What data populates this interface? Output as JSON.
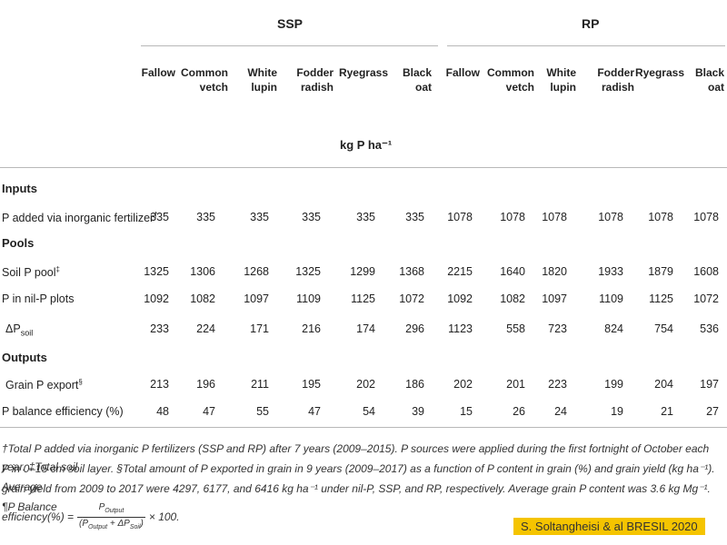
{
  "groups": {
    "ssp": "SSP",
    "rp": "RP"
  },
  "columns": [
    [
      "Fallow"
    ],
    [
      "Common",
      "vetch"
    ],
    [
      "White",
      "lupin"
    ],
    [
      "Fodder",
      "radish"
    ],
    [
      "Ryegrass"
    ],
    [
      "Black",
      "oat"
    ],
    [
      "Fallow"
    ],
    [
      "Common",
      "vetch"
    ],
    [
      "White",
      "lupin"
    ],
    [
      "Fodder",
      "radish"
    ],
    [
      "Ryegrass"
    ],
    [
      "Black",
      "oat"
    ]
  ],
  "unit": "kg P ha⁻¹",
  "sections": {
    "inputs": "Inputs",
    "pools": "Pools",
    "outputs": "Outputs"
  },
  "rows": {
    "p_added": {
      "label": "P added via inorganic fertilizer",
      "mark": "†",
      "values": [
        "335",
        "335",
        "335",
        "335",
        "335",
        "335",
        "1078",
        "1078",
        "1078",
        "1078",
        "1078",
        "1078"
      ]
    },
    "soil_p": {
      "label": "Soil P pool",
      "mark": "‡",
      "values": [
        "1325",
        "1306",
        "1268",
        "1325",
        "1299",
        "1368",
        "2215",
        "1640",
        "1820",
        "1933",
        "1879",
        "1608"
      ]
    },
    "nil_p": {
      "label": "P in nil-P plots",
      "values": [
        "1092",
        "1082",
        "1097",
        "1109",
        "1125",
        "1072",
        "1092",
        "1082",
        "1097",
        "1109",
        "1125",
        "1072"
      ]
    },
    "delta_p": {
      "label": "ΔP",
      "sub": "soil",
      "values": [
        "233",
        "224",
        "171",
        "216",
        "174",
        "296",
        "1123",
        "558",
        "723",
        "824",
        "754",
        "536"
      ]
    },
    "grain_p": {
      "label": "Grain P export",
      "mark": "§",
      "values": [
        "213",
        "196",
        "211",
        "195",
        "202",
        "186",
        "202",
        "201",
        "223",
        "199",
        "204",
        "197"
      ]
    },
    "efficiency": {
      "label": "P balance efficiency (%)",
      "values": [
        "48",
        "47",
        "55",
        "47",
        "54",
        "39",
        "15",
        "26",
        "24",
        "19",
        "21",
        "27"
      ]
    }
  },
  "footnote": {
    "line1": "†Total P added via inorganic P fertilizers (SSP and RP) after 7 years (2009–2015). P sources were applied during the first fortnight of October each year. ‡Total soil",
    "line2": "P in 0–15 cm soil layer. §Total amount of P exported in grain in 9 years (2009–2017) as a function of P content in grain (%) and grain yield (kg ha⁻¹). Average",
    "line3": "grain yield from 2009 to 2017 were 4297, 6177, and 6416 kg ha⁻¹ under nil-P, SSP, and RP, respectively. Average grain P content was 3.6 kg Mg⁻¹. ¶P Balance",
    "eff_prefix": "efficiency(%) =",
    "frac_num": "P",
    "frac_num_sub": "Output",
    "frac_den_open": "(P",
    "frac_den_sub": "Output",
    "frac_den_mid": " + ΔP",
    "frac_den_sub2": "Soil",
    "frac_den_close": ")",
    "eff_suffix": "× 100."
  },
  "signature": "S. Soltangheisi & al BRESIL  2020"
}
